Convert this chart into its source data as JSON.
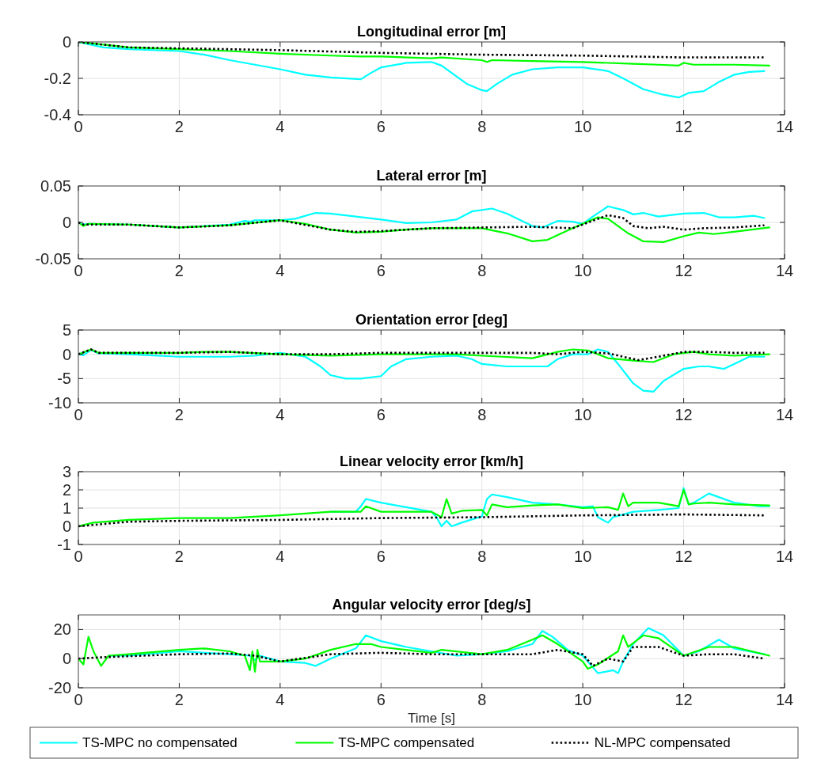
{
  "chart_data": [
    {
      "type": "line",
      "title": "Longitudinal error [m]",
      "xlim": [
        0,
        14
      ],
      "xticks": [
        0,
        2,
        4,
        6,
        8,
        10,
        12,
        14
      ],
      "ylim": [
        -0.4,
        0
      ],
      "yticks": [
        -0.4,
        -0.2,
        0
      ],
      "grid": true,
      "series": [
        {
          "color": "#00ffff",
          "x": [
            0,
            0.5,
            1,
            2,
            2.5,
            3,
            4,
            4.5,
            5,
            5.6,
            5.8,
            6,
            6.5,
            7,
            7.2,
            7.4,
            7.7,
            8,
            8.1,
            8.3,
            8.6,
            9,
            9.5,
            10,
            10.5,
            10.8,
            11.2,
            11.6,
            11.9,
            12.1,
            12.4,
            12.7,
            13,
            13.3,
            13.6
          ],
          "values": [
            0,
            -0.03,
            -0.04,
            -0.05,
            -0.07,
            -0.1,
            -0.15,
            -0.18,
            -0.195,
            -0.205,
            -0.17,
            -0.14,
            -0.115,
            -0.11,
            -0.13,
            -0.17,
            -0.23,
            -0.265,
            -0.27,
            -0.23,
            -0.18,
            -0.15,
            -0.14,
            -0.14,
            -0.16,
            -0.2,
            -0.26,
            -0.29,
            -0.305,
            -0.28,
            -0.27,
            -0.22,
            -0.18,
            -0.165,
            -0.16
          ]
        },
        {
          "color": "#00ff00",
          "x": [
            0,
            1,
            2,
            3,
            4,
            5,
            5.6,
            6,
            7,
            7.2,
            8,
            8.1,
            8.2,
            9,
            10,
            11,
            11.5,
            11.9,
            12,
            12.2,
            13,
            13.7
          ],
          "values": [
            0,
            -0.03,
            -0.04,
            -0.05,
            -0.065,
            -0.075,
            -0.08,
            -0.08,
            -0.09,
            -0.085,
            -0.1,
            -0.11,
            -0.1,
            -0.105,
            -0.11,
            -0.12,
            -0.125,
            -0.13,
            -0.115,
            -0.125,
            -0.125,
            -0.13
          ]
        },
        {
          "color": "#000000",
          "line_style": "dotted",
          "x": [
            0,
            1,
            2,
            4,
            6,
            8,
            10,
            12,
            13.6
          ],
          "values": [
            0,
            -0.03,
            -0.035,
            -0.045,
            -0.06,
            -0.07,
            -0.075,
            -0.085,
            -0.085
          ]
        }
      ]
    },
    {
      "type": "line",
      "title": "Lateral error [m]",
      "xlim": [
        0,
        14
      ],
      "xticks": [
        0,
        2,
        4,
        6,
        8,
        10,
        12,
        14
      ],
      "ylim": [
        -0.05,
        0.05
      ],
      "yticks": [
        -0.05,
        0,
        0.05
      ],
      "grid": true,
      "series": [
        {
          "color": "#00ffff",
          "x": [
            0,
            0.1,
            0.2,
            1,
            2,
            3,
            3.3,
            3.4,
            3.5,
            4,
            4.3,
            4.7,
            5,
            5.5,
            6,
            6.5,
            7,
            7.5,
            7.8,
            8.2,
            8.5,
            9,
            9.2,
            9.5,
            9.8,
            10,
            10.2,
            10.5,
            10.8,
            11,
            11.2,
            11.5,
            12,
            12.4,
            12.7,
            13,
            13.4,
            13.6
          ],
          "values": [
            0,
            -0.003,
            -0.002,
            -0.003,
            -0.007,
            -0.003,
            0.002,
            0.001,
            0.003,
            0.003,
            0.005,
            0.013,
            0.012,
            0.008,
            0.004,
            -0.001,
            0,
            0.004,
            0.015,
            0.019,
            0.012,
            -0.005,
            -0.007,
            0.002,
            0.001,
            -0.002,
            0.008,
            0.022,
            0.017,
            0.011,
            0.013,
            0.008,
            0.012,
            0.013,
            0.007,
            0.007,
            0.009,
            0.006
          ]
        },
        {
          "color": "#00ff00",
          "x": [
            0,
            0.1,
            0.2,
            1,
            2,
            3,
            4,
            4.5,
            5,
            5.5,
            6,
            6.5,
            7,
            8,
            8.5,
            9,
            9.3,
            9.8,
            10.3,
            10.5,
            10.9,
            11.2,
            11.6,
            12,
            12.3,
            12.6,
            13,
            13.7
          ],
          "values": [
            0,
            -0.005,
            -0.002,
            -0.003,
            -0.007,
            -0.004,
            0.003,
            -0.002,
            -0.01,
            -0.014,
            -0.013,
            -0.01,
            -0.008,
            -0.008,
            -0.015,
            -0.026,
            -0.024,
            -0.008,
            0.007,
            0.005,
            -0.015,
            -0.026,
            -0.027,
            -0.019,
            -0.014,
            -0.016,
            -0.013,
            -0.007
          ]
        },
        {
          "color": "#000000",
          "line_style": "dotted",
          "x": [
            0,
            0.1,
            1,
            2,
            3,
            4,
            5,
            5.5,
            6,
            7,
            8,
            9,
            9.8,
            10.5,
            10.8,
            11,
            11.3,
            11.6,
            12,
            12.4,
            13,
            13.6
          ],
          "values": [
            0,
            -0.003,
            -0.003,
            -0.007,
            -0.004,
            0.003,
            -0.01,
            -0.013,
            -0.012,
            -0.008,
            -0.007,
            -0.006,
            -0.008,
            0.01,
            0.006,
            -0.005,
            -0.008,
            -0.006,
            -0.01,
            -0.008,
            -0.007,
            -0.004
          ]
        }
      ]
    },
    {
      "type": "line",
      "title": "Orientation error [deg]",
      "xlim": [
        0,
        14
      ],
      "xticks": [
        0,
        2,
        4,
        6,
        8,
        10,
        12,
        14
      ],
      "ylim": [
        -10,
        5
      ],
      "yticks": [
        -10,
        -5,
        0,
        5
      ],
      "grid": true,
      "series": [
        {
          "color": "#00ffff",
          "x": [
            0,
            0.1,
            0.25,
            0.4,
            1,
            2,
            3,
            3.5,
            4,
            4.5,
            4.8,
            5,
            5.3,
            5.6,
            6,
            6.2,
            6.5,
            7,
            7.5,
            7.8,
            8,
            8.5,
            9,
            9.3,
            9.5,
            9.8,
            10.1,
            10.3,
            10.5,
            10.7,
            11,
            11.2,
            11.4,
            11.6,
            12,
            12.3,
            12.5,
            12.8,
            13,
            13.3,
            13.6
          ],
          "values": [
            0,
            -0.2,
            0.9,
            0.2,
            0,
            -0.5,
            -0.5,
            -0.3,
            0.3,
            -0.5,
            -2.5,
            -4.3,
            -5,
            -5,
            -4.5,
            -2.5,
            -1,
            -0.5,
            -0.3,
            -1,
            -2,
            -2.5,
            -2.5,
            -2.5,
            -1,
            0,
            0,
            1,
            0.5,
            -2,
            -6,
            -7.5,
            -7.7,
            -5.5,
            -3,
            -2.5,
            -2.5,
            -3,
            -2,
            -0.5,
            -0.5
          ]
        },
        {
          "color": "#00ff00",
          "x": [
            0,
            0.25,
            0.4,
            2,
            2.5,
            3,
            4,
            5,
            6,
            7,
            7.5,
            8,
            9,
            9.5,
            9.8,
            10.1,
            10.5,
            11,
            11.4,
            11.8,
            12.2,
            12.5,
            13,
            13.7
          ],
          "values": [
            0,
            1,
            0.3,
            0.3,
            0.5,
            0.5,
            0,
            -0.3,
            0,
            0,
            0,
            -0.3,
            -0.8,
            0.5,
            1,
            0.8,
            -0.8,
            -1.3,
            -1.6,
            0,
            0.5,
            0,
            -0.3,
            0
          ]
        },
        {
          "color": "#000000",
          "line_style": "dotted",
          "x": [
            0,
            0.25,
            0.4,
            2,
            3,
            4,
            5,
            6,
            8,
            9,
            9.5,
            10,
            10.5,
            11.1,
            11.5,
            12,
            12.5,
            13,
            13.6
          ],
          "values": [
            0,
            1,
            0.3,
            0.3,
            0.5,
            0,
            0,
            0.3,
            0.3,
            0.3,
            0,
            0.5,
            0.2,
            -1.2,
            -0.5,
            0.5,
            0.5,
            0.3,
            0.3
          ]
        }
      ]
    },
    {
      "type": "line",
      "title": "Linear velocity error [km/h]",
      "xlim": [
        0,
        14
      ],
      "xticks": [
        0,
        2,
        4,
        6,
        8,
        10,
        12,
        14
      ],
      "ylim": [
        -1,
        3
      ],
      "yticks": [
        -1,
        0,
        1,
        2,
        3
      ],
      "grid": true,
      "series": [
        {
          "color": "#00ffff",
          "x": [
            5,
            5.5,
            5.6,
            5.7,
            6,
            6.5,
            7,
            7.1,
            7.2,
            7.3,
            7.4,
            7.6,
            8,
            8.1,
            8.2,
            8.5,
            9,
            9.5,
            10,
            10.2,
            10.3,
            10.5,
            10.6,
            11,
            11.5,
            11.9,
            12,
            12.1,
            12.2,
            12.5,
            13,
            13.5,
            13.7
          ],
          "values": [
            0.8,
            0.8,
            1.1,
            1.5,
            1.3,
            1.05,
            0.8,
            0.5,
            0,
            0.3,
            0,
            0.2,
            0.55,
            1.5,
            1.75,
            1.6,
            1.3,
            1.2,
            1.05,
            1.1,
            0.5,
            0.2,
            0.5,
            0.8,
            0.9,
            1,
            2.1,
            1.2,
            1.3,
            1.8,
            1.3,
            1.1,
            1.1
          ]
        },
        {
          "color": "#00ff00",
          "x": [
            0,
            0.3,
            1,
            2,
            3,
            4,
            5,
            5.6,
            5.7,
            6,
            7,
            7.2,
            7.3,
            7.4,
            7.6,
            8,
            8.1,
            8.2,
            8.5,
            9,
            9.5,
            10,
            10.5,
            10.7,
            10.8,
            10.9,
            11,
            11.5,
            11.9,
            12,
            12.1,
            12.2,
            12.5,
            13,
            13.7
          ],
          "values": [
            0,
            0.2,
            0.35,
            0.45,
            0.45,
            0.6,
            0.8,
            0.8,
            1.1,
            0.8,
            0.8,
            0.5,
            1.5,
            0.7,
            0.85,
            0.9,
            0.6,
            1.2,
            1.05,
            1.15,
            1.2,
            1,
            1.05,
            0.9,
            1.8,
            1.1,
            1.3,
            1.3,
            1.1,
            2,
            1.2,
            1.25,
            1.3,
            1.2,
            1.15
          ]
        },
        {
          "color": "#000000",
          "line_style": "dotted",
          "x": [
            0,
            1,
            2,
            4,
            6,
            8,
            10,
            12,
            13.6
          ],
          "values": [
            0,
            0.25,
            0.3,
            0.35,
            0.45,
            0.5,
            0.6,
            0.65,
            0.6
          ]
        }
      ]
    },
    {
      "type": "line",
      "title": "Angular velocity error [deg/s]",
      "xlabel": "Time [s]",
      "xlim": [
        0,
        14
      ],
      "xticks": [
        0,
        2,
        4,
        6,
        8,
        10,
        12,
        14
      ],
      "ylim": [
        -20,
        30
      ],
      "yticks": [
        -20,
        0,
        20
      ],
      "grid": true,
      "legend": "bottom",
      "series": [
        {
          "name": "TS-MPC no compensated",
          "color": "#00ffff",
          "x": [
            0.6,
            1,
            2,
            3,
            3.4,
            3.5,
            3.6,
            4,
            4.5,
            4.7,
            5,
            5.5,
            5.7,
            6,
            6.5,
            7,
            7.5,
            8,
            8.5,
            9,
            9.2,
            9.4,
            9.7,
            10,
            10.3,
            10.6,
            10.7,
            10.8,
            11,
            11.3,
            11.6,
            12,
            12.3,
            12.7,
            13,
            13.6
          ],
          "values": [
            2,
            2,
            5,
            3,
            2,
            -1,
            2,
            -2,
            -3,
            -5,
            0,
            7,
            16,
            12,
            8,
            5,
            2,
            3,
            5,
            10,
            19,
            15,
            6,
            2,
            -10,
            -8,
            -10,
            -2,
            10,
            21,
            16,
            2,
            5,
            13,
            7,
            3
          ]
        },
        {
          "name": "TS-MPC compensated",
          "color": "#00ff00",
          "x": [
            0,
            0.1,
            0.2,
            0.3,
            0.45,
            0.6,
            1,
            2,
            2.5,
            3,
            3.3,
            3.4,
            3.45,
            3.5,
            3.55,
            3.6,
            4,
            4.5,
            5,
            5.5,
            5.8,
            6,
            7,
            7.2,
            8,
            8.5,
            9,
            9.2,
            9.5,
            10,
            10.1,
            10.3,
            10.7,
            10.8,
            10.9,
            11.2,
            11.5,
            12,
            12.5,
            13,
            13.7
          ],
          "values": [
            0,
            -4,
            15,
            5,
            -5,
            2,
            3,
            6,
            7,
            5,
            2,
            -8,
            5,
            -9,
            6,
            -2,
            -2,
            0,
            6,
            10,
            10,
            8,
            4,
            6,
            3,
            6,
            13,
            16,
            10,
            -2,
            -7,
            -4,
            5,
            16,
            8,
            16,
            14,
            2,
            8,
            8,
            2
          ]
        },
        {
          "name": "NL-MPC compensated",
          "color": "#000000",
          "line_style": "dotted",
          "x": [
            0,
            0.5,
            2,
            3,
            3.5,
            4,
            5,
            6,
            7,
            8,
            9,
            9.5,
            10,
            10.2,
            10.5,
            10.8,
            11,
            11.5,
            12,
            12.5,
            13,
            13.6
          ],
          "values": [
            0,
            1,
            3,
            3.5,
            2,
            -2,
            3,
            4,
            3,
            3,
            3,
            6,
            3,
            -5,
            0,
            -2,
            8,
            8,
            2,
            3,
            3,
            0
          ]
        }
      ]
    }
  ]
}
